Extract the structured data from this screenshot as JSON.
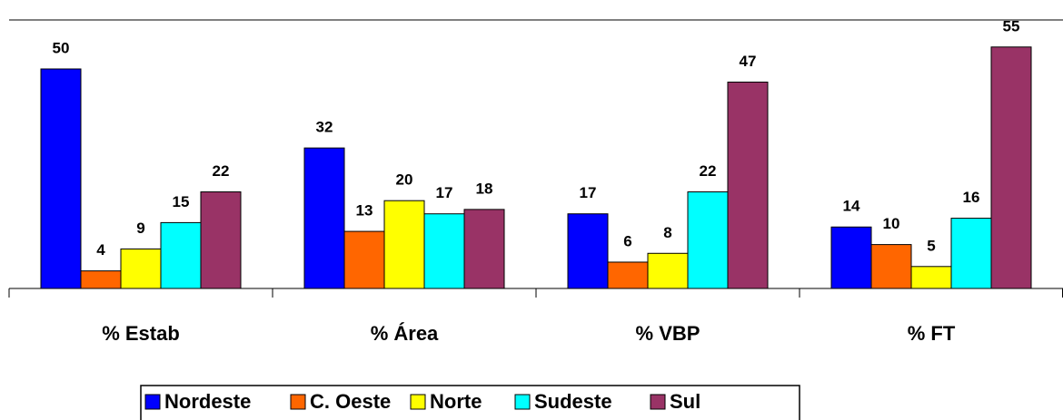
{
  "chart_data": {
    "type": "bar",
    "categories": [
      "% Estab",
      "% Área",
      "% VBP",
      "% FT"
    ],
    "series": [
      {
        "name": "Nordeste",
        "color": "#0000ff",
        "values": [
          50,
          32,
          17,
          14
        ]
      },
      {
        "name": "C. Oeste",
        "color": "#ff6600",
        "values": [
          4,
          13,
          6,
          10
        ]
      },
      {
        "name": "Norte",
        "color": "#ffff00",
        "values": [
          9,
          20,
          8,
          5
        ]
      },
      {
        "name": "Sudeste",
        "color": "#00ffff",
        "values": [
          15,
          17,
          22,
          16
        ]
      },
      {
        "name": "Sul",
        "color": "#993366",
        "values": [
          22,
          18,
          47,
          55
        ]
      }
    ],
    "legend": "bottom"
  }
}
